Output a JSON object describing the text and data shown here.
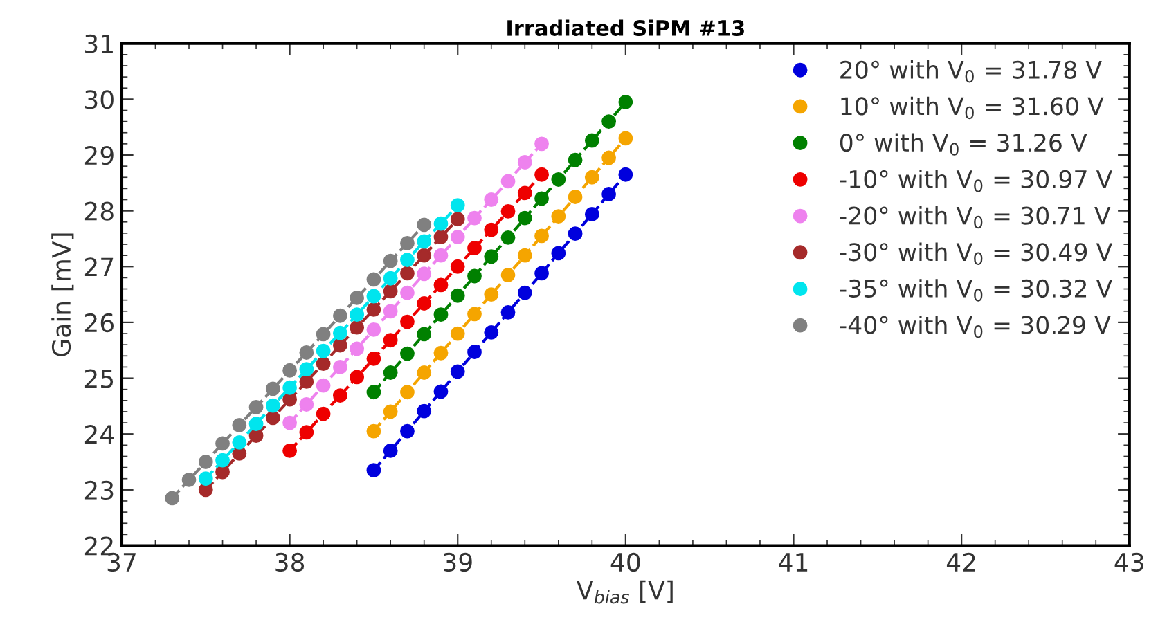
{
  "chart_data": {
    "type": "line",
    "title": "Irradiated SiPM #13",
    "xlabel": "V$_{bias}$ [V]",
    "ylabel": "Gain [mV]",
    "xlim": [
      37,
      43
    ],
    "xticks": [
      37,
      38,
      39,
      40,
      41,
      42,
      43
    ],
    "ylim": [
      22,
      31
    ],
    "yticks": [
      22,
      23,
      24,
      25,
      26,
      27,
      28,
      29,
      30,
      31
    ],
    "grid": false,
    "legend": "top right",
    "marker": "circle",
    "line_style": "dashed",
    "series": [
      {
        "name": "20° with V$_{0}$ = 31.78 V",
        "color": "#0000dd",
        "x": [
          38.5,
          38.6,
          38.7,
          38.8,
          38.9,
          39.0,
          39.1,
          39.2,
          39.3,
          39.4,
          39.5,
          39.6,
          39.7,
          39.8,
          39.9,
          40.0
        ],
        "values": [
          23.35,
          23.7,
          24.05,
          24.41,
          24.76,
          25.12,
          25.47,
          25.82,
          26.18,
          26.53,
          26.88,
          27.24,
          27.59,
          27.94,
          28.3,
          28.65
        ]
      },
      {
        "name": "10° with V$_{0}$ = 31.60 V",
        "color": "#f5a500",
        "x": [
          38.5,
          38.6,
          38.7,
          38.8,
          38.9,
          39.0,
          39.1,
          39.2,
          39.3,
          39.4,
          39.5,
          39.6,
          39.7,
          39.8,
          39.9,
          40.0
        ],
        "values": [
          24.05,
          24.4,
          24.75,
          25.1,
          25.45,
          25.8,
          26.15,
          26.5,
          26.85,
          27.2,
          27.55,
          27.9,
          28.25,
          28.6,
          28.95,
          29.3
        ]
      },
      {
        "name": "0° with V$_{0}$ = 31.26 V",
        "color": "#008000",
        "x": [
          38.5,
          38.6,
          38.7,
          38.8,
          38.9,
          39.0,
          39.1,
          39.2,
          39.3,
          39.4,
          39.5,
          39.6,
          39.7,
          39.8,
          39.9,
          40.0
        ],
        "values": [
          24.75,
          25.1,
          25.44,
          25.79,
          26.14,
          26.48,
          26.83,
          27.18,
          27.52,
          27.87,
          28.22,
          28.56,
          28.91,
          29.26,
          29.6,
          29.95
        ]
      },
      {
        "name": "-10° with V$_{0}$ = 30.97 V",
        "color": "#ee0000",
        "x": [
          38.0,
          38.1,
          38.2,
          38.3,
          38.4,
          38.5,
          38.6,
          38.7,
          38.8,
          38.9,
          39.0,
          39.1,
          39.2,
          39.3,
          39.4,
          39.5
        ],
        "values": [
          23.7,
          24.03,
          24.36,
          24.69,
          25.02,
          25.35,
          25.68,
          26.01,
          26.34,
          26.67,
          27.0,
          27.33,
          27.66,
          27.99,
          28.32,
          28.65
        ]
      },
      {
        "name": "-20° with V$_{0}$ = 30.71 V",
        "color": "#ee82ee",
        "x": [
          38.0,
          38.1,
          38.2,
          38.3,
          38.4,
          38.5,
          38.6,
          38.7,
          38.8,
          38.9,
          39.0,
          39.1,
          39.2,
          39.3,
          39.4,
          39.5
        ],
        "values": [
          24.2,
          24.53,
          24.87,
          25.2,
          25.53,
          25.87,
          26.2,
          26.53,
          26.87,
          27.2,
          27.53,
          27.87,
          28.2,
          28.53,
          28.87,
          29.2
        ]
      },
      {
        "name": "-30° with V$_{0}$ = 30.49 V",
        "color": "#a52a2a",
        "x": [
          37.5,
          37.6,
          37.7,
          37.8,
          37.9,
          38.0,
          38.1,
          38.2,
          38.3,
          38.4,
          38.5,
          38.6,
          38.7,
          38.8,
          38.9,
          39.0
        ],
        "values": [
          23.0,
          23.32,
          23.65,
          23.97,
          24.29,
          24.62,
          24.94,
          25.26,
          25.59,
          25.91,
          26.23,
          26.56,
          26.88,
          27.2,
          27.53,
          27.85
        ]
      },
      {
        "name": "-35° with V$_{0}$ = 30.32 V",
        "color": "#00e5ee",
        "x": [
          37.5,
          37.6,
          37.7,
          37.8,
          37.9,
          38.0,
          38.1,
          38.2,
          38.3,
          38.4,
          38.5,
          38.6,
          38.7,
          38.8,
          38.9,
          39.0
        ],
        "values": [
          23.2,
          23.53,
          23.85,
          24.18,
          24.51,
          24.83,
          25.16,
          25.49,
          25.81,
          26.14,
          26.47,
          26.79,
          27.12,
          27.45,
          27.77,
          28.1
        ]
      },
      {
        "name": "-40° with V$_{0}$ = 30.29 V",
        "color": "#808080",
        "x": [
          37.3,
          37.4,
          37.5,
          37.6,
          37.7,
          37.8,
          37.9,
          38.0,
          38.1,
          38.2,
          38.3,
          38.4,
          38.5,
          38.6,
          38.7,
          38.8
        ],
        "values": [
          22.85,
          23.18,
          23.5,
          23.83,
          24.16,
          24.48,
          24.81,
          25.14,
          25.46,
          25.79,
          26.12,
          26.44,
          26.77,
          27.1,
          27.42,
          27.75
        ]
      }
    ]
  }
}
